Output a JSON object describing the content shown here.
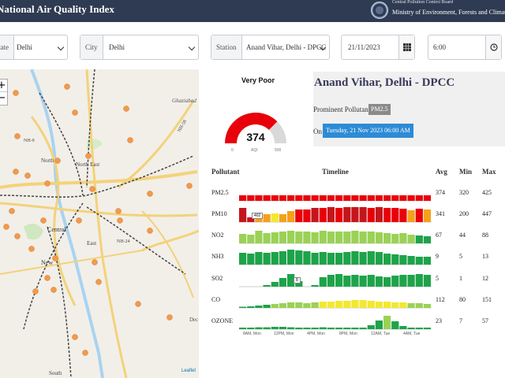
{
  "header": {
    "title": "National Air Quality Index",
    "org_line1": "Central Pollution Control Board",
    "org_line2": "Ministry of Environment, Forests and Climate Change"
  },
  "filters": {
    "state_label": "State",
    "state_value": "Delhi",
    "city_label": "City",
    "city_value": "Delhi",
    "station_label": "Station",
    "station_value": "Anand Vihar, Delhi - DPCC",
    "date_value": "21/11/2023",
    "time_value": "6:00"
  },
  "map": {
    "labels": [
      "Ghaziabad",
      "NH-9",
      "NH-58",
      "North",
      "North East",
      "NH-24",
      "Central",
      "East",
      "New",
      "South",
      "Dec"
    ],
    "attribution": "Leaflet"
  },
  "gauge": {
    "category": "Very Poor",
    "value": "374",
    "min": "0",
    "unit": "AQI",
    "max": "500",
    "level": 0.748,
    "color": "#e8000b"
  },
  "station": {
    "name": "Anand Vihar, Delhi - DPCC",
    "prominent_label": "Prominent Pollutant is",
    "prominent_value": "PM2.5",
    "on_label": "On",
    "timestamp": "Tuesday, 21 Nov 2023 06:00 AM"
  },
  "table": {
    "headers": {
      "pollutant": "Pollutant",
      "timeline": "Timeline",
      "avg": "Avg",
      "min": "Min",
      "max": "Max"
    },
    "rows": [
      {
        "name": "PM2.5",
        "avg": "374",
        "min": "320",
        "max": "425"
      },
      {
        "name": "PM10",
        "avg": "341",
        "min": "200",
        "max": "447"
      },
      {
        "name": "NO2",
        "avg": "67",
        "min": "44",
        "max": "88"
      },
      {
        "name": "NH3",
        "avg": "9",
        "min": "5",
        "max": "13"
      },
      {
        "name": "SO2",
        "avg": "5",
        "min": "1",
        "max": "12"
      },
      {
        "name": "CO",
        "avg": "112",
        "min": "80",
        "max": "151"
      },
      {
        "name": "OZONE",
        "avg": "23",
        "min": "7",
        "max": "57"
      }
    ],
    "time_labels": [
      "8AM, Mon",
      "12PM, Mon",
      "4PM, Mon",
      "8PM, Mon",
      "12AM, Tue",
      "4AM, Tue"
    ],
    "tooltips": {
      "pm10": "402",
      "so2": "8"
    }
  },
  "colors": {
    "severe": "#c4161c",
    "very_poor": "#e8000b",
    "poor": "#f6a01a",
    "moderate": "#f3e831",
    "satisfactory": "#9bd156",
    "good": "#1ea34a"
  }
}
